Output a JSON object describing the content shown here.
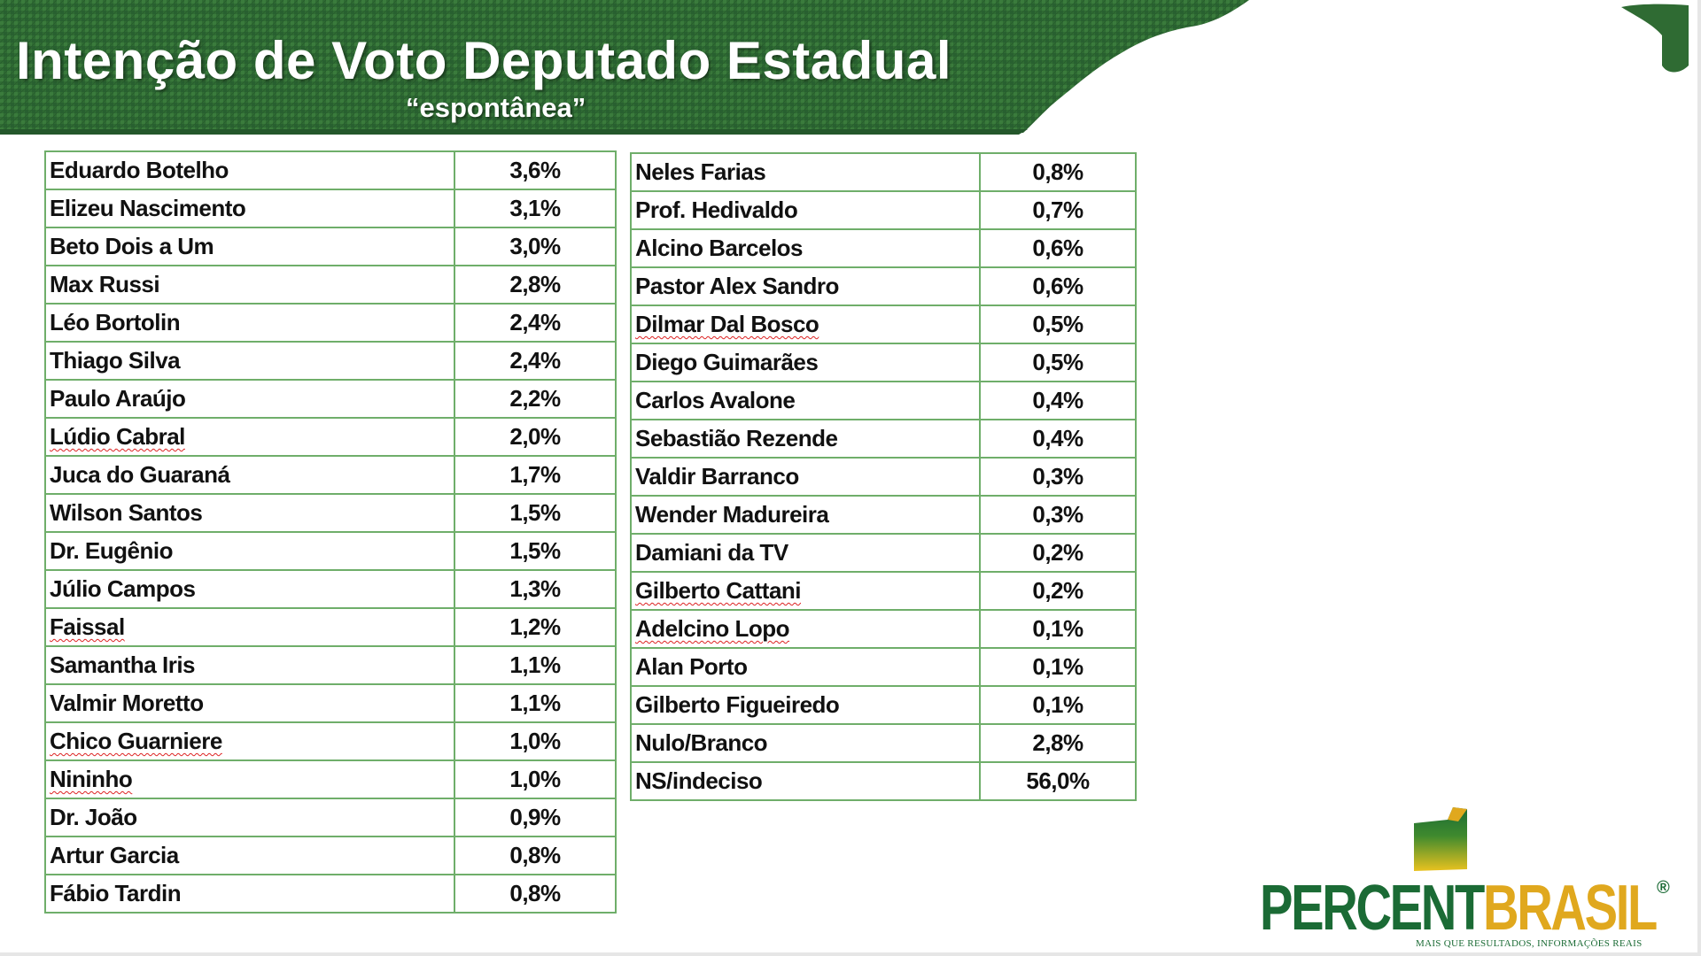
{
  "slide": {
    "title": "Intenção de Voto Deputado Estadual",
    "subtitle": "“espontânea”",
    "colors": {
      "header_green": "#2f6b33",
      "table_border": "#6fae6a",
      "brand_green": "#1b6b35",
      "brand_yellow": "#e0a81e"
    }
  },
  "table_left": {
    "rows": [
      {
        "name": "Eduardo Botelho",
        "value": "3,6%"
      },
      {
        "name": "Elizeu Nascimento",
        "value": "3,1%"
      },
      {
        "name": "Beto Dois a Um",
        "value": "3,0%"
      },
      {
        "name": "Max Russi",
        "value": "2,8%"
      },
      {
        "name": "Léo Bortolin",
        "value": "2,4%"
      },
      {
        "name": "Thiago Silva",
        "value": "2,4%"
      },
      {
        "name": "Paulo Araújo",
        "value": "2,2%"
      },
      {
        "name": "Lúdio Cabral",
        "value": "2,0%"
      },
      {
        "name": "Juca do Guaraná",
        "value": "1,7%"
      },
      {
        "name": "Wilson Santos",
        "value": "1,5%"
      },
      {
        "name": "Dr. Eugênio",
        "value": "1,5%"
      },
      {
        "name": "Júlio Campos",
        "value": "1,3%"
      },
      {
        "name": "Faissal",
        "value": "1,2%"
      },
      {
        "name": "Samantha Iris",
        "value": "1,1%"
      },
      {
        "name": "Valmir Moretto",
        "value": "1,1%"
      },
      {
        "name": "Chico Guarniere",
        "value": "1,0%"
      },
      {
        "name": "Nininho",
        "value": "1,0%"
      },
      {
        "name": "Dr. João",
        "value": "0,9%"
      },
      {
        "name": "Artur Garcia",
        "value": "0,8%"
      },
      {
        "name": "Fábio Tardin",
        "value": "0,8%"
      }
    ]
  },
  "table_right": {
    "rows": [
      {
        "name": "Neles Farias",
        "value": "0,8%"
      },
      {
        "name": "Prof. Hedivaldo",
        "value": "0,7%"
      },
      {
        "name": "Alcino Barcelos",
        "value": "0,6%"
      },
      {
        "name": "Pastor Alex Sandro",
        "value": "0,6%"
      },
      {
        "name": "Dilmar Dal Bosco",
        "value": "0,5%"
      },
      {
        "name": "Diego Guimarães",
        "value": "0,5%"
      },
      {
        "name": "Carlos Avalone",
        "value": "0,4%"
      },
      {
        "name": "Sebastião Rezende",
        "value": "0,4%"
      },
      {
        "name": "Valdir Barranco",
        "value": "0,3%"
      },
      {
        "name": "Wender Madureira",
        "value": "0,3%"
      },
      {
        "name": "Damiani da TV",
        "value": "0,2%"
      },
      {
        "name": "Gilberto Cattani",
        "value": "0,2%"
      },
      {
        "name": "Adelcino Lopo",
        "value": "0,1%"
      },
      {
        "name": "Alan Porto",
        "value": "0,1%"
      },
      {
        "name": "Gilberto Figueiredo",
        "value": "0,1%"
      },
      {
        "name": "Nulo/Branco",
        "value": "2,8%"
      },
      {
        "name": "NS/indeciso",
        "value": "56,0%"
      }
    ]
  },
  "logo": {
    "word_1": "PERCENT",
    "word_2": "BRASIL",
    "registered": "®",
    "tagline": "MAIS QUE RESULTADOS, INFORMAÇÕES REAIS"
  }
}
